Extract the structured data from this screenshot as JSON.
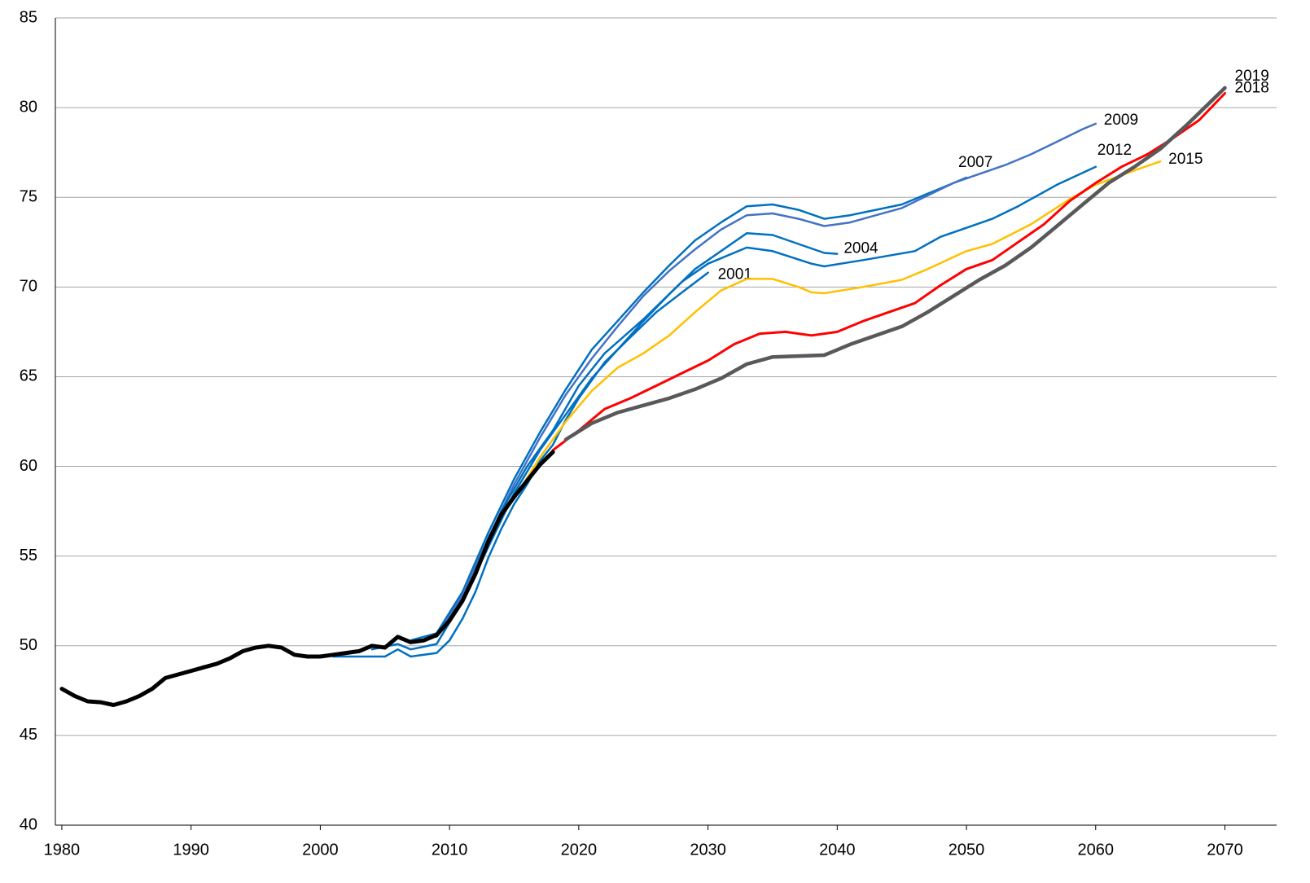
{
  "chart_data": {
    "type": "line",
    "xlim": [
      1979.5,
      2074
    ],
    "xticks": [
      1980,
      1990,
      2000,
      2010,
      2020,
      2030,
      2040,
      2050,
      2060,
      2070
    ],
    "ylim": [
      40,
      85
    ],
    "yticks": [
      40,
      45,
      50,
      55,
      60,
      65,
      70,
      75,
      80,
      85
    ],
    "grid": true,
    "series": [
      {
        "name": "2001",
        "color": "#0070c0",
        "x": [
          2001,
          2005,
          2006,
          2007,
          2009,
          2010,
          2011,
          2012,
          2013,
          2014,
          2015,
          2016,
          2017,
          2018,
          2019,
          2020,
          2022,
          2024,
          2026,
          2028,
          2030
        ],
        "values": [
          49.4,
          49.4,
          49.8,
          49.4,
          49.6,
          50.3,
          51.5,
          53.0,
          54.9,
          56.5,
          57.9,
          59.0,
          60.3,
          61.2,
          62.6,
          63.8,
          65.8,
          67.2,
          68.6,
          69.7,
          70.8
        ]
      },
      {
        "name": "2004",
        "color": "#0070c0",
        "x": [
          2004,
          2006,
          2007,
          2009,
          2011,
          2013,
          2015,
          2017,
          2019,
          2021,
          2023,
          2025,
          2027,
          2029,
          2031,
          2033,
          2035,
          2037,
          2039,
          2040
        ],
        "values": [
          49.8,
          50.1,
          49.8,
          50.1,
          52.5,
          55.5,
          58.5,
          60.9,
          62.9,
          64.9,
          66.5,
          68.1,
          69.6,
          71.0,
          72.0,
          73.0,
          72.9,
          72.4,
          71.9,
          71.85
        ]
      },
      {
        "name": "2007",
        "color": "#0070c0",
        "x": [
          2007,
          2009,
          2011,
          2013,
          2015,
          2017,
          2019,
          2021,
          2023,
          2025,
          2027,
          2029,
          2031,
          2033,
          2035,
          2037,
          2039,
          2041,
          2043,
          2045,
          2047,
          2049,
          2050
        ],
        "values": [
          50.3,
          50.7,
          53.0,
          56.3,
          59.3,
          61.9,
          64.3,
          66.5,
          68.1,
          69.7,
          71.2,
          72.6,
          73.6,
          74.5,
          74.6,
          74.3,
          73.8,
          74.0,
          74.3,
          74.6,
          75.2,
          75.8,
          76.1
        ]
      },
      {
        "name": "2009",
        "color": "#4472c4",
        "x": [
          2009,
          2011,
          2013,
          2015,
          2017,
          2019,
          2021,
          2023,
          2025,
          2027,
          2029,
          2031,
          2033,
          2035,
          2037,
          2039,
          2041,
          2043,
          2045,
          2047,
          2049,
          2051,
          2053,
          2055,
          2057,
          2059,
          2060
        ],
        "values": [
          50.5,
          52.8,
          56.0,
          59.0,
          61.6,
          64.0,
          66.0,
          67.8,
          69.5,
          70.9,
          72.1,
          73.2,
          74.0,
          74.1,
          73.8,
          73.4,
          73.6,
          74.0,
          74.4,
          75.1,
          75.8,
          76.3,
          76.8,
          77.4,
          78.1,
          78.8,
          79.1
        ]
      },
      {
        "name": "2012",
        "color": "#0070c0",
        "x": [
          2012,
          2014,
          2016,
          2018,
          2020,
          2022,
          2025,
          2028,
          2030,
          2033,
          2035,
          2038,
          2039,
          2042,
          2046,
          2048,
          2050,
          2052,
          2054,
          2057,
          2060
        ],
        "values": [
          54.2,
          57.5,
          60.0,
          62.0,
          64.5,
          66.3,
          68.2,
          70.3,
          71.3,
          72.2,
          72.0,
          71.3,
          71.15,
          71.5,
          72.0,
          72.8,
          73.3,
          73.8,
          74.5,
          75.7,
          76.7
        ]
      },
      {
        "name": "2015",
        "color": "#ffc000",
        "x": [
          2015,
          2017,
          2019,
          2021,
          2023,
          2025,
          2027,
          2029,
          2031,
          2033,
          2035,
          2037,
          2038,
          2039,
          2042,
          2045,
          2047,
          2050,
          2052,
          2055,
          2058,
          2060,
          2063,
          2065
        ],
        "values": [
          58.2,
          60.5,
          62.5,
          64.2,
          65.5,
          66.3,
          67.3,
          68.6,
          69.8,
          70.45,
          70.45,
          70.0,
          69.7,
          69.65,
          70.0,
          70.4,
          71.0,
          72.0,
          72.4,
          73.5,
          74.9,
          75.7,
          76.5,
          77.0
        ]
      },
      {
        "name": "2018",
        "color": "#ff0000",
        "x": [
          2018,
          2020,
          2022,
          2024,
          2026,
          2028,
          2030,
          2032,
          2034,
          2036,
          2038,
          2040,
          2042,
          2044,
          2046,
          2048,
          2050,
          2052,
          2054,
          2056,
          2058,
          2060,
          2062,
          2064,
          2066,
          2068,
          2070
        ],
        "values": [
          60.9,
          62.0,
          63.2,
          63.8,
          64.5,
          65.2,
          65.9,
          66.8,
          67.4,
          67.5,
          67.3,
          67.5,
          68.1,
          68.6,
          69.1,
          70.1,
          71.0,
          71.5,
          72.5,
          73.5,
          74.8,
          75.8,
          76.7,
          77.4,
          78.3,
          79.3,
          80.8
        ]
      },
      {
        "name": "2019",
        "color": "#595959",
        "x": [
          2019,
          2021,
          2023,
          2025,
          2027,
          2029,
          2031,
          2033,
          2035,
          2037,
          2039,
          2041,
          2043,
          2045,
          2047,
          2049,
          2051,
          2053,
          2055,
          2057,
          2059,
          2061,
          2063,
          2065,
          2067,
          2070
        ],
        "values": [
          61.5,
          62.4,
          63.0,
          63.4,
          63.8,
          64.3,
          64.9,
          65.7,
          66.1,
          66.15,
          66.2,
          66.8,
          67.3,
          67.8,
          68.6,
          69.5,
          70.4,
          71.2,
          72.2,
          73.4,
          74.6,
          75.8,
          76.7,
          77.7,
          79.0,
          81.1
        ]
      },
      {
        "color": "#000000",
        "x": [
          1980,
          1981,
          1982,
          1983,
          1984,
          1985,
          1986,
          1987,
          1988,
          1989,
          1990,
          1991,
          1992,
          1993,
          1994,
          1995,
          1996,
          1997,
          1998,
          1999,
          2000,
          2001,
          2002,
          2003,
          2004,
          2005,
          2006,
          2007,
          2008,
          2009,
          2010,
          2011,
          2012,
          2013,
          2014,
          2015,
          2016,
          2017,
          2018
        ],
        "values": [
          47.6,
          47.2,
          46.9,
          46.85,
          46.7,
          46.9,
          47.2,
          47.6,
          48.2,
          48.4,
          48.6,
          48.8,
          49.0,
          49.3,
          49.7,
          49.9,
          50.0,
          49.9,
          49.5,
          49.4,
          49.4,
          49.5,
          49.6,
          49.7,
          50.0,
          49.9,
          50.5,
          50.2,
          50.3,
          50.6,
          51.4,
          52.5,
          54.0,
          55.8,
          57.3,
          58.3,
          59.2,
          60.1,
          60.8
        ]
      }
    ]
  }
}
